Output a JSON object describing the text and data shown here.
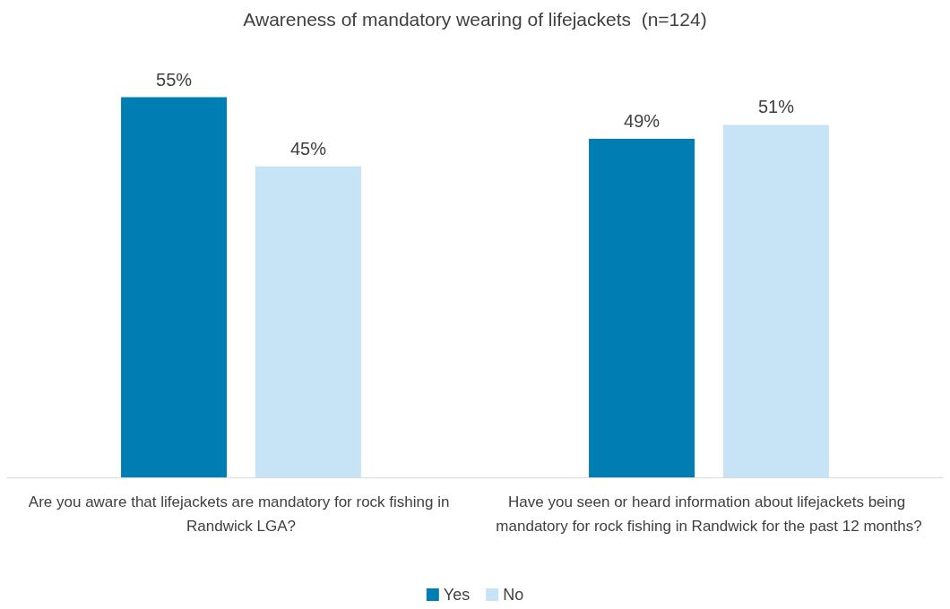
{
  "chart_data": {
    "type": "bar",
    "title": "Awareness of mandatory wearing of lifejackets  (n=124)",
    "categories": [
      "Are you aware that lifejackets are mandatory for rock fishing in Randwick LGA?",
      "Have you seen or heard information about lifejackets being mandatory for rock fishing in Randwick for the past 12 months?"
    ],
    "series": [
      {
        "name": "Yes",
        "color": "#007db3",
        "values": [
          55,
          49
        ],
        "value_labels": [
          "55%",
          "49%"
        ]
      },
      {
        "name": "No",
        "color": "#c7e4f6",
        "values": [
          45,
          51
        ],
        "value_labels": [
          "45%",
          "51%"
        ]
      }
    ],
    "legend": "bottom"
  }
}
